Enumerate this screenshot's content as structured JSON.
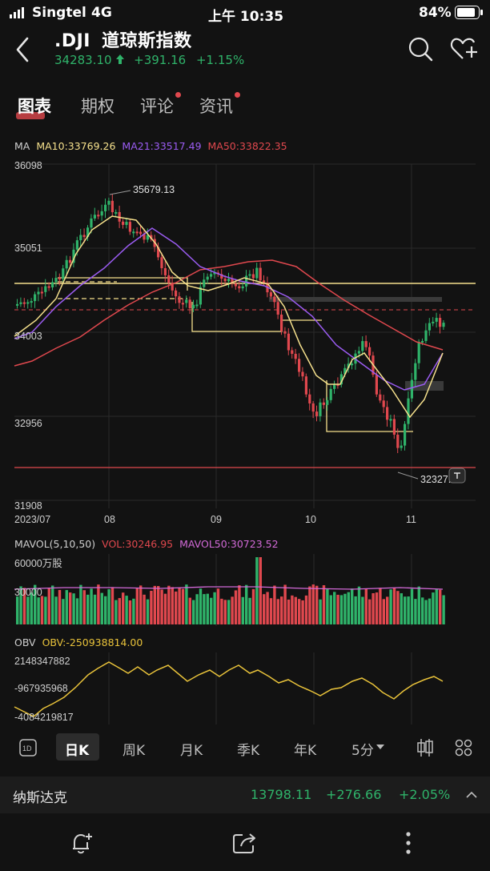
{
  "status_bar": {
    "carrier": "Singtel",
    "network": "4G",
    "time": "上午 10:35",
    "battery": "84%"
  },
  "header": {
    "symbol": ".DJI",
    "name": "道琼斯指数",
    "price": "34283.10",
    "change": "+391.16",
    "change_pct": "+1.15%",
    "up_color": "#2fb36a",
    "down_color": "#e0484e"
  },
  "tabs": [
    {
      "label": "图表",
      "active": true
    },
    {
      "label": "期权",
      "active": false
    },
    {
      "label": "评论",
      "active": false,
      "badge": true
    },
    {
      "label": "资讯",
      "active": false,
      "badge": true
    }
  ],
  "ma_legend": {
    "label": "MA",
    "ma10": "MA10:33769.26",
    "ma21": "MA21:33517.49",
    "ma50": "MA50:33822.35",
    "ma10_color": "#f5e08c",
    "ma21_color": "#9b5cf2",
    "ma50_color": "#e0484e"
  },
  "price_axis": [
    "36098",
    "35051",
    "34003",
    "32956",
    "31908"
  ],
  "date_axis": [
    "2023/07",
    "08",
    "09",
    "10",
    "11"
  ],
  "price_annotations": {
    "high": "35679.13",
    "low": "32327.20"
  },
  "vol_legend": {
    "label": "MAVOL(5,10,50)",
    "vol": "VOL:30246.95",
    "mavol50": "MAVOL50:30723.52",
    "vol_color": "#e0484e",
    "mavol50_color": "#d36ad8"
  },
  "vol_axis": [
    "60000万股",
    "30000"
  ],
  "obv_legend": {
    "label": "OBV",
    "obv": "OBV:-250938814.00",
    "obv_color": "#e8c23a"
  },
  "obv_axis": [
    "2148347882",
    "-967935968",
    "-4084219817"
  ],
  "periods": [
    {
      "label": "日K",
      "active": true
    },
    {
      "label": "周K",
      "active": false
    },
    {
      "label": "月K",
      "active": false
    },
    {
      "label": "季K",
      "active": false
    },
    {
      "label": "年K",
      "active": false
    },
    {
      "label": "5分",
      "active": false
    }
  ],
  "nasdaq": {
    "name": "纳斯达克",
    "price": "13798.11",
    "change": "+276.66",
    "change_pct": "+2.05%"
  },
  "icons": {
    "back": "back-arrow-icon",
    "search": "search-icon",
    "watchlist": "heart-add-icon",
    "daily": "1d-icon",
    "candle": "candlestick-icon",
    "grid": "grid-icon",
    "alert": "bell-add-icon",
    "share": "share-icon",
    "more": "more-icon"
  }
}
